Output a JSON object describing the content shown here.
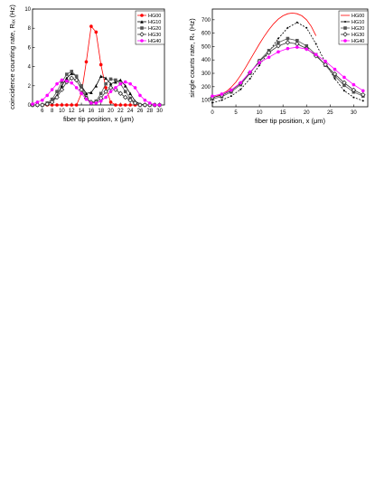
{
  "chart_data": [
    {
      "type": "line",
      "xlabel": "fiber tip position, x (μm)",
      "ylabel": "coincidence counting rate, Rₓₓ (Hz)",
      "xlim": [
        4,
        31
      ],
      "ylim": [
        0,
        10
      ],
      "xticks": [
        6,
        8,
        10,
        12,
        14,
        16,
        18,
        20,
        22,
        24,
        26,
        28,
        30
      ],
      "yticks": [
        0,
        2,
        4,
        6,
        8,
        10
      ],
      "grid": false,
      "legend_position": "top-right",
      "series": [
        {
          "name": "HG00",
          "color": "#ff0000",
          "marker": "circle",
          "x": [
            4,
            5,
            6,
            7,
            8,
            9,
            10,
            11,
            12,
            13,
            14,
            15,
            16,
            17,
            18,
            19,
            20,
            21,
            22,
            23,
            24,
            25,
            26,
            27,
            28,
            29,
            30
          ],
          "y": [
            0,
            0,
            0,
            0,
            0,
            0,
            0,
            0,
            0,
            0,
            1.2,
            4.5,
            8.2,
            7.6,
            4.2,
            1.8,
            0.3,
            0,
            0,
            0,
            0,
            0,
            0,
            0,
            0,
            0,
            0
          ]
        },
        {
          "name": "HG10",
          "color": "#000000",
          "marker": "triangle",
          "x": [
            4,
            5,
            6,
            7,
            8,
            9,
            10,
            11,
            12,
            13,
            14,
            15,
            16,
            17,
            18,
            19,
            20,
            21,
            22,
            23,
            24,
            25,
            26,
            27,
            28,
            29,
            30
          ],
          "y": [
            0,
            0,
            0,
            0.1,
            0.4,
            1.0,
            2.0,
            2.8,
            3.3,
            3.0,
            2.0,
            1.2,
            1.3,
            2.0,
            3.0,
            2.8,
            2.2,
            2.4,
            2.6,
            2.0,
            1.2,
            0.4,
            0.1,
            0,
            0,
            0,
            0
          ]
        },
        {
          "name": "HG20",
          "color": "#555555",
          "marker": "square",
          "x": [
            4,
            5,
            6,
            7,
            8,
            9,
            10,
            11,
            12,
            13,
            14,
            15,
            16,
            17,
            18,
            19,
            20,
            21,
            22,
            23,
            24,
            25,
            26,
            27,
            28,
            29,
            30
          ],
          "y": [
            0,
            0,
            0,
            0.2,
            0.6,
            1.4,
            2.4,
            3.2,
            3.5,
            3.0,
            2.0,
            0.8,
            0.2,
            0.4,
            1.2,
            2.2,
            2.7,
            2.6,
            2.2,
            1.4,
            0.7,
            0.2,
            0,
            0,
            0,
            0,
            0
          ]
        },
        {
          "name": "HG30",
          "color": "#333333",
          "marker": "diamond-open",
          "x": [
            4,
            5,
            6,
            7,
            8,
            9,
            10,
            11,
            12,
            13,
            14,
            15,
            16,
            17,
            18,
            19,
            20,
            21,
            22,
            23,
            24,
            25,
            26,
            27,
            28,
            29,
            30
          ],
          "y": [
            0,
            0,
            0,
            0.1,
            0.3,
            0.8,
            1.6,
            2.4,
            2.8,
            2.6,
            1.6,
            0.7,
            0.3,
            0.3,
            0.7,
            1.4,
            1.8,
            1.6,
            1.2,
            0.8,
            0.5,
            0.2,
            0,
            0,
            0,
            0,
            0
          ]
        },
        {
          "name": "HG40",
          "color": "#ff00ff",
          "marker": "star",
          "x": [
            4,
            5,
            6,
            7,
            8,
            9,
            10,
            11,
            12,
            13,
            14,
            15,
            16,
            17,
            18,
            19,
            20,
            21,
            22,
            23,
            24,
            25,
            26,
            27,
            28,
            29,
            30
          ],
          "y": [
            0.1,
            0.3,
            0.5,
            1.0,
            1.6,
            2.2,
            2.6,
            2.5,
            2.3,
            1.8,
            1.2,
            0.6,
            0.2,
            0.2,
            0.4,
            0.8,
            1.4,
            1.8,
            2.2,
            2.4,
            2.2,
            1.8,
            1.0,
            0.5,
            0.2,
            0,
            0
          ]
        }
      ]
    },
    {
      "type": "line",
      "xlabel": "fiber tip position, x (μm)",
      "ylabel": "single counts rate, Rₛ (Hz)",
      "xlim": [
        0,
        33
      ],
      "ylim": [
        50,
        780
      ],
      "xticks": [
        0,
        5,
        10,
        15,
        20,
        25,
        30
      ],
      "yticks": [
        100,
        200,
        300,
        400,
        500,
        600,
        700
      ],
      "grid": false,
      "legend_position": "top-right",
      "series": [
        {
          "name": "HG00",
          "color": "#ff0000",
          "marker": "none",
          "x": [
            0,
            1,
            2,
            3,
            4,
            5,
            6,
            7,
            8,
            9,
            10,
            11,
            12,
            13,
            14,
            15,
            16,
            17,
            18,
            19,
            20,
            21,
            22
          ],
          "y": [
            120,
            130,
            145,
            165,
            195,
            235,
            285,
            340,
            400,
            460,
            520,
            575,
            625,
            670,
            705,
            730,
            745,
            750,
            745,
            730,
            700,
            650,
            580
          ]
        },
        {
          "name": "HG10",
          "color": "#000000",
          "marker": "dot",
          "x": [
            0,
            2,
            4,
            6,
            8,
            10,
            12,
            14,
            16,
            18,
            20,
            22,
            24,
            26,
            28,
            30,
            32
          ],
          "y": [
            80,
            100,
            130,
            180,
            260,
            360,
            460,
            560,
            640,
            680,
            640,
            520,
            380,
            260,
            170,
            120,
            95
          ]
        },
        {
          "name": "HG20",
          "color": "#555555",
          "marker": "square",
          "x": [
            0,
            2,
            4,
            6,
            8,
            10,
            12,
            14,
            16,
            18,
            20,
            22,
            24,
            26,
            28,
            30,
            32
          ],
          "y": [
            110,
            125,
            160,
            215,
            300,
            395,
            470,
            530,
            560,
            545,
            505,
            440,
            360,
            280,
            210,
            160,
            130
          ]
        },
        {
          "name": "HG30",
          "color": "#333333",
          "marker": "diamond-open",
          "x": [
            0,
            2,
            4,
            6,
            8,
            10,
            12,
            14,
            16,
            18,
            20,
            22,
            24,
            26,
            28,
            30,
            32
          ],
          "y": [
            120,
            135,
            170,
            225,
            305,
            390,
            455,
            505,
            530,
            520,
            485,
            430,
            365,
            295,
            230,
            175,
            140
          ]
        },
        {
          "name": "HG40",
          "color": "#ff00ff",
          "marker": "star",
          "x": [
            0,
            2,
            4,
            6,
            8,
            10,
            12,
            14,
            16,
            18,
            20,
            22,
            24,
            26,
            28,
            30,
            32
          ],
          "y": [
            130,
            145,
            175,
            230,
            310,
            380,
            420,
            460,
            485,
            495,
            480,
            440,
            390,
            330,
            270,
            215,
            170
          ]
        }
      ]
    }
  ]
}
